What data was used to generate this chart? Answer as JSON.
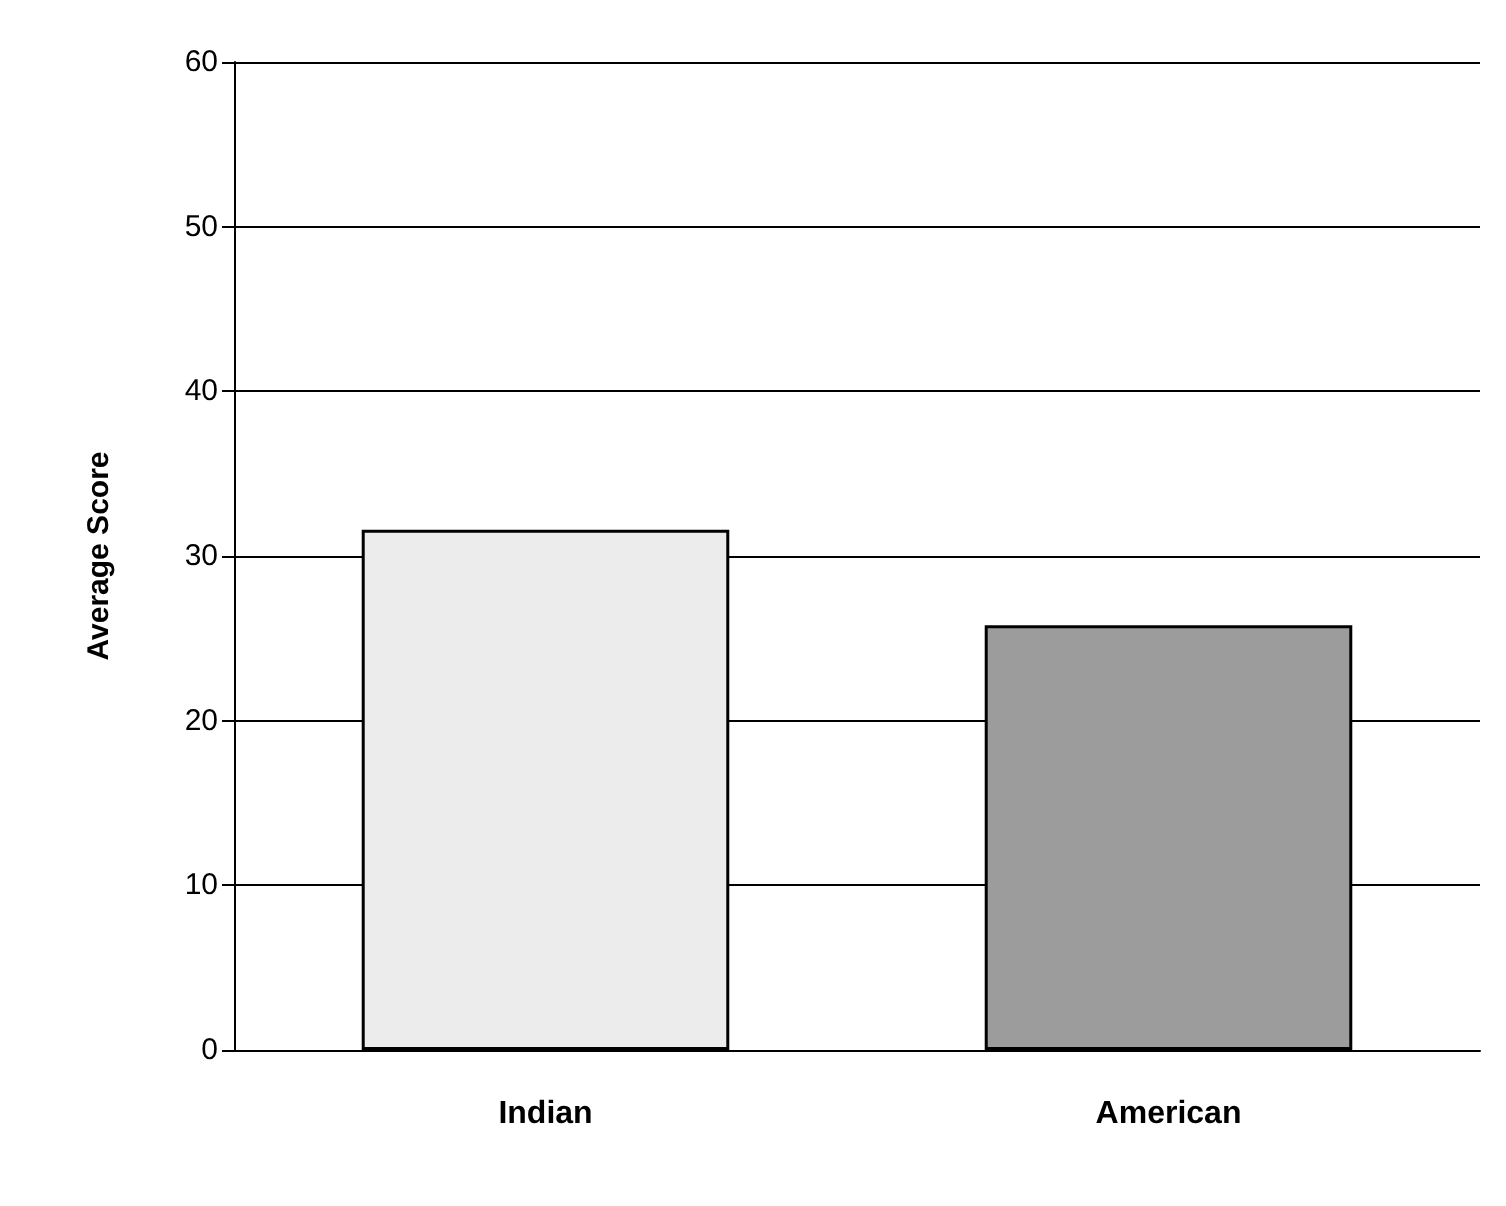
{
  "chart_data": {
    "type": "bar",
    "ylabel": "Average Score",
    "categories": [
      "Indian",
      "American"
    ],
    "values": [
      31.6,
      25.8
    ],
    "colors": [
      "#ececec",
      "#9c9c9c"
    ],
    "ylim": [
      0,
      60
    ],
    "yticks": [
      0,
      10,
      20,
      30,
      40,
      50,
      60
    ],
    "grid": "y"
  }
}
